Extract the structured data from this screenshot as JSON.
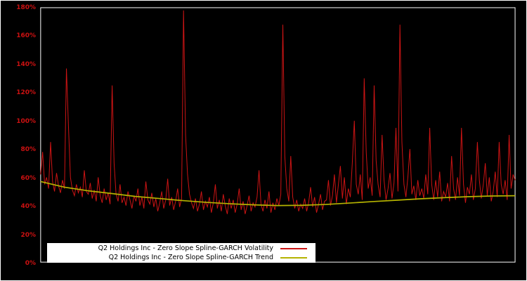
{
  "chart_data": {
    "type": "line",
    "title": "",
    "background": "#000000",
    "frame_border_color": "#ffffff",
    "plot_border_color": "#ffffff",
    "axis_label_color": "#cc1111",
    "ylim": [
      0,
      180
    ],
    "ytick_step": 20,
    "ylabel_ticks": [
      "0%",
      "20%",
      "40%",
      "60%",
      "80%",
      "100%",
      "120%",
      "140%",
      "160%",
      "180%"
    ],
    "x_axis": {
      "tick_labels_visible": false
    },
    "legend": {
      "position": "bottom-center",
      "background": "#ffffff",
      "text_color": "#000000"
    },
    "series": [
      {
        "name": "Q2 Holdings Inc - Zero Slope Spline-GARCH Volatility",
        "color": "#cc1414",
        "style": "line",
        "values": [
          62,
          78,
          55,
          60,
          52,
          85,
          57,
          50,
          63,
          54,
          49,
          58,
          52,
          137,
          96,
          60,
          51,
          47,
          55,
          49,
          53,
          46,
          65,
          50,
          48,
          56,
          45,
          51,
          43,
          60,
          47,
          42,
          52,
          44,
          49,
          41,
          125,
          70,
          48,
          43,
          55,
          42,
          46,
          40,
          50,
          44,
          38,
          47,
          43,
          52,
          40,
          46,
          38,
          57,
          44,
          41,
          49,
          39,
          45,
          36,
          42,
          50,
          38,
          44,
          59,
          40,
          46,
          37,
          43,
          52,
          39,
          45,
          178,
          90,
          62,
          48,
          42,
          38,
          45,
          36,
          41,
          50,
          37,
          43,
          39,
          46,
          35,
          42,
          55,
          38,
          44,
          36,
          48,
          40,
          34,
          45,
          38,
          44,
          35,
          41,
          52,
          37,
          43,
          34,
          40,
          47,
          36,
          42,
          39,
          46,
          65,
          41,
          36,
          44,
          38,
          50,
          35,
          42,
          37,
          45,
          40,
          48,
          168,
          75,
          52,
          43,
          75,
          46,
          38,
          44,
          36,
          41,
          38,
          45,
          36,
          42,
          53,
          39,
          46,
          35,
          41,
          48,
          37,
          43,
          44,
          58,
          40,
          47,
          62,
          42,
          55,
          68,
          45,
          60,
          41,
          52,
          46,
          70,
          100,
          55,
          48,
          62,
          44,
          130,
          78,
          52,
          60,
          47,
          125,
          72,
          55,
          46,
          90,
          58,
          44,
          52,
          63,
          45,
          56,
          95,
          50,
          168,
          85,
          55,
          46,
          60,
          80,
          48,
          54,
          44,
          58,
          47,
          52,
          45,
          62,
          48,
          95,
          55,
          44,
          58,
          46,
          64,
          43,
          50,
          46,
          56,
          43,
          75,
          52,
          44,
          60,
          47,
          95,
          55,
          42,
          53,
          48,
          62,
          44,
          52,
          85,
          58,
          45,
          55,
          70,
          47,
          60,
          43,
          50,
          64,
          46,
          85,
          55,
          48,
          58,
          44,
          90,
          52,
          62,
          58
        ]
      },
      {
        "name": "Q2 Holdings Inc - Zero Slope Spline-GARCH Trend",
        "color": "#b5b300",
        "style": "line",
        "points": [
          [
            0.0,
            57
          ],
          [
            0.05,
            53
          ],
          [
            0.1,
            50.5
          ],
          [
            0.15,
            48.5
          ],
          [
            0.2,
            46.5
          ],
          [
            0.25,
            45
          ],
          [
            0.3,
            43.5
          ],
          [
            0.35,
            42.3
          ],
          [
            0.4,
            41.3
          ],
          [
            0.45,
            40.5
          ],
          [
            0.5,
            40
          ],
          [
            0.55,
            40.2
          ],
          [
            0.6,
            40.8
          ],
          [
            0.65,
            41.8
          ],
          [
            0.7,
            42.8
          ],
          [
            0.75,
            43.8
          ],
          [
            0.8,
            44.8
          ],
          [
            0.85,
            45.6
          ],
          [
            0.9,
            46.3
          ],
          [
            0.95,
            46.8
          ],
          [
            1.0,
            47
          ]
        ]
      }
    ]
  }
}
